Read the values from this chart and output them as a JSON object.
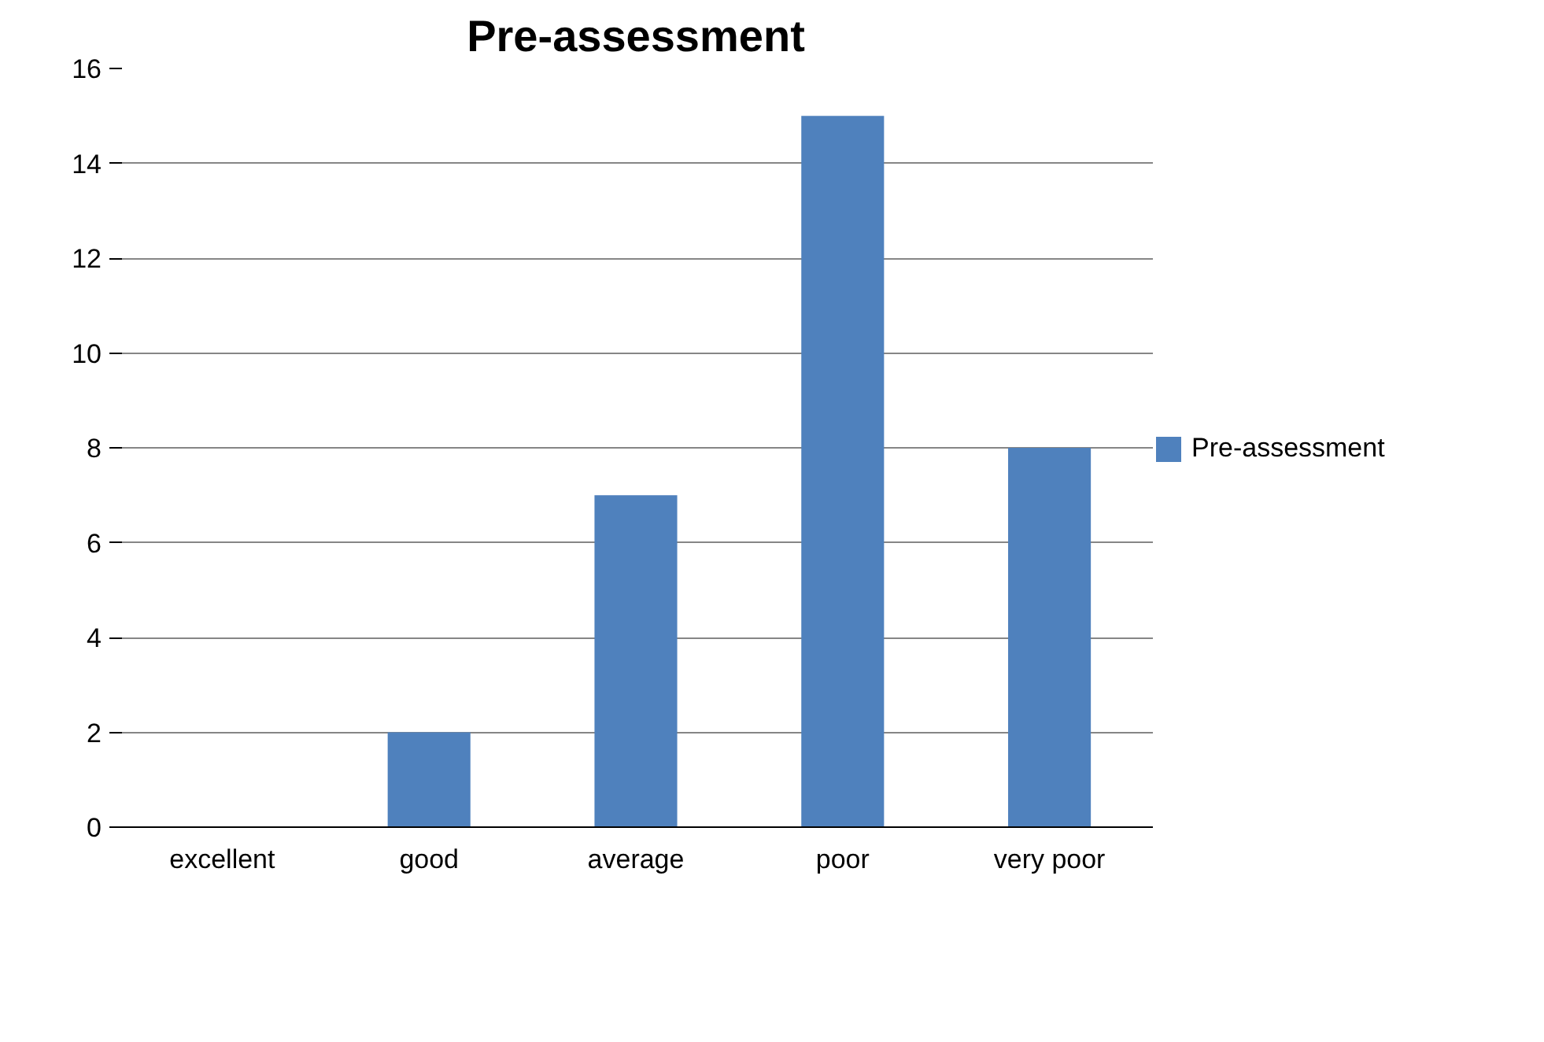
{
  "chart_data": {
    "type": "bar",
    "title": "Pre-assessment",
    "categories": [
      "excellent",
      "good",
      "average",
      "poor",
      "very poor"
    ],
    "series": [
      {
        "name": "Pre-assessment",
        "color": "#4f81bd",
        "values": [
          0,
          2,
          7,
          15,
          8
        ]
      }
    ],
    "ylim": [
      0,
      16
    ],
    "yticks": [
      0,
      2,
      4,
      6,
      8,
      10,
      12,
      14,
      16
    ],
    "grid": "y",
    "legend": "right"
  }
}
